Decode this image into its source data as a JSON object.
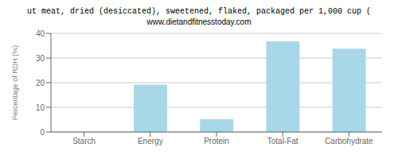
{
  "chart_data": {
    "type": "bar",
    "title": "ut meat, dried (desiccated), sweetened, flaked, packaged per 1,000 cup (",
    "subtitle": "www.dietandfitnesstoday.com",
    "ylabel": "Percentage of RDH (%)",
    "categories": [
      "Starch",
      "Energy",
      "Protein",
      "Total-Fat",
      "Carbohydrate"
    ],
    "values": [
      0,
      19.2,
      5.2,
      36.8,
      33.8
    ],
    "color": "#a8d8e8",
    "ylim": [
      0,
      40
    ],
    "yticks": [
      0,
      10,
      20,
      30,
      40
    ],
    "grid": true
  }
}
